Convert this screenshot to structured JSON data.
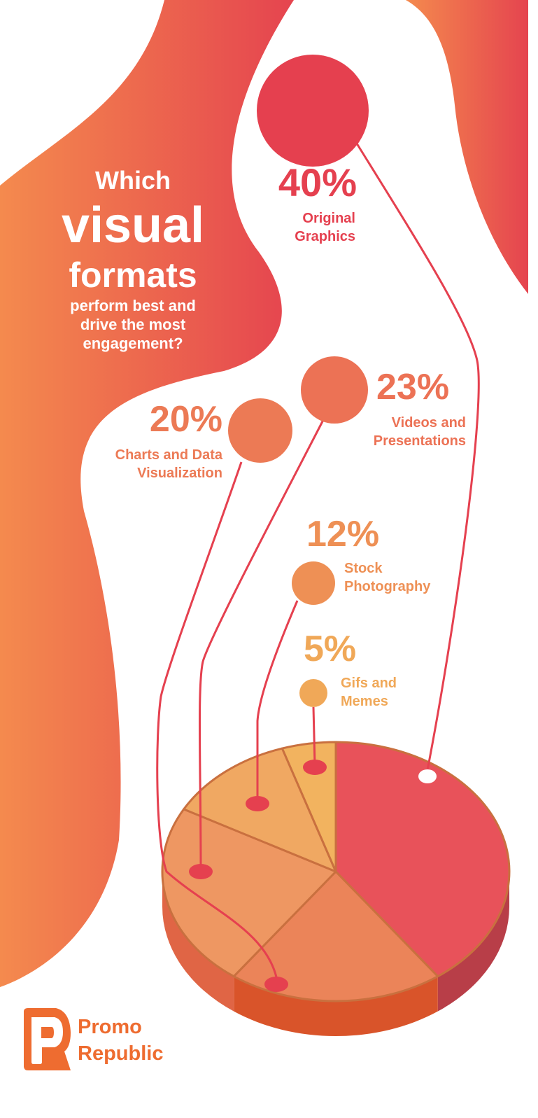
{
  "title": {
    "line1": "Which",
    "line2": "visual",
    "line3": "formats",
    "line4": "perform best and",
    "line5": "drive the most",
    "line6": "engagement?"
  },
  "brand": {
    "line1": "Promo",
    "line2": "Republic",
    "logo_letter": "P",
    "color": "#ee6c30"
  },
  "chart_data": {
    "type": "pie",
    "style": "3d",
    "legend": "none",
    "slices": [
      {
        "percent_label": "40%",
        "value": 40,
        "label_lines": [
          "Original",
          "Graphics"
        ],
        "color": "#e5404f"
      },
      {
        "percent_label": "20%",
        "value": 20,
        "label_lines": [
          "Charts and Data",
          "Visualization"
        ],
        "color": "#ec7a55"
      },
      {
        "percent_label": "23%",
        "value": 23,
        "label_lines": [
          "Videos and",
          "Presentations"
        ],
        "color": "#ec7255"
      },
      {
        "percent_label": "12%",
        "value": 12,
        "label_lines": [
          "Stock",
          "Photography"
        ],
        "color": "#ee9055"
      },
      {
        "percent_label": "5%",
        "value": 5,
        "label_lines": [
          "Gifs and",
          "Memes"
        ],
        "color": "#f0a858"
      }
    ]
  }
}
